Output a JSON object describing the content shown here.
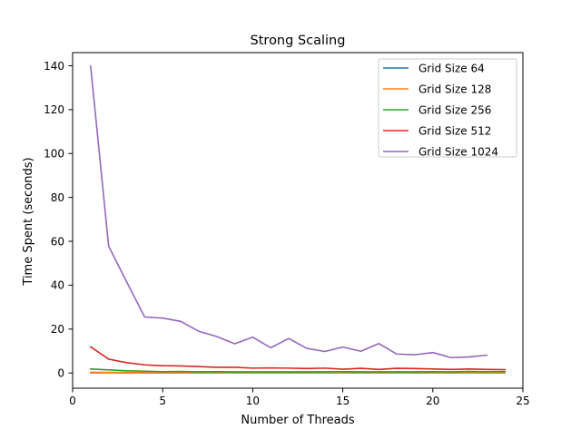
{
  "chart_data": {
    "type": "line",
    "title": "Strong Scaling",
    "xlabel": "Number of Threads",
    "ylabel": "Time Spent (seconds)",
    "xlim": [
      0,
      25
    ],
    "ylim": [
      -6.95,
      146
    ],
    "xticks": [
      0,
      5,
      10,
      15,
      20,
      25
    ],
    "yticks": [
      0,
      20,
      40,
      60,
      80,
      100,
      120,
      140
    ],
    "grid": false,
    "legend_position": "top-right",
    "series": [
      {
        "name": "Grid Size 64",
        "color": "#1f77b4",
        "x": [
          1,
          2,
          3,
          4,
          5,
          6,
          7,
          8,
          9,
          10,
          11,
          12,
          13,
          14,
          15,
          16,
          17,
          18,
          19,
          20,
          21,
          22,
          23,
          24
        ],
        "y": [
          0.1,
          0.08,
          0.07,
          0.06,
          0.05,
          0.05,
          0.05,
          0.05,
          0.05,
          0.05,
          0.05,
          0.05,
          0.05,
          0.05,
          0.05,
          0.05,
          0.05,
          0.05,
          0.05,
          0.05,
          0.05,
          0.05,
          0.05,
          0.05
        ]
      },
      {
        "name": "Grid Size 128",
        "color": "#ff7f0e",
        "x": [
          1,
          2,
          3,
          4,
          5,
          6,
          7,
          8,
          9,
          10,
          11,
          12,
          13,
          14,
          15,
          16,
          17,
          18,
          19,
          20,
          21,
          22,
          23,
          24
        ],
        "y": [
          0.3,
          0.25,
          0.2,
          0.18,
          0.15,
          0.15,
          0.15,
          0.15,
          0.15,
          0.15,
          0.15,
          0.15,
          0.15,
          0.15,
          0.15,
          0.15,
          0.15,
          0.15,
          0.15,
          0.15,
          0.15,
          0.15,
          0.15,
          0.15
        ]
      },
      {
        "name": "Grid Size 256",
        "color": "#2ca02c",
        "x": [
          1,
          2,
          3,
          4,
          5,
          6,
          7,
          8,
          9,
          10,
          11,
          12,
          13,
          14,
          15,
          16,
          17,
          18,
          19,
          20,
          21,
          22,
          23,
          24
        ],
        "y": [
          1.8,
          1.4,
          1.0,
          0.8,
          0.6,
          0.7,
          0.5,
          0.6,
          0.5,
          0.5,
          0.5,
          0.5,
          0.5,
          0.5,
          0.6,
          0.5,
          0.5,
          0.5,
          0.5,
          0.6,
          0.5,
          0.7,
          0.6,
          0.6
        ]
      },
      {
        "name": "Grid Size 512",
        "color": "#d62728",
        "x": [
          1,
          2,
          3,
          4,
          5,
          6,
          7,
          8,
          9,
          10,
          11,
          12,
          13,
          14,
          15,
          16,
          17,
          18,
          19,
          20,
          21,
          22,
          23,
          24
        ],
        "y": [
          11.9,
          6.3,
          4.7,
          3.7,
          3.3,
          3.2,
          2.9,
          2.6,
          2.6,
          2.2,
          2.3,
          2.2,
          2.0,
          2.2,
          1.7,
          2.1,
          1.6,
          2.1,
          2.0,
          1.8,
          1.6,
          1.8,
          1.6,
          1.5
        ]
      },
      {
        "name": "Grid Size 1024",
        "color": "#9467bd",
        "x": [
          1,
          2,
          3,
          4,
          5,
          6,
          7,
          8,
          9,
          10,
          11,
          12,
          13,
          14,
          15,
          16,
          17,
          18,
          19,
          20,
          21,
          22,
          23
        ],
        "y": [
          139.8,
          57.8,
          41.5,
          25.5,
          25.0,
          23.5,
          19.0,
          16.6,
          13.3,
          16.3,
          11.5,
          15.7,
          11.2,
          9.8,
          11.8,
          9.9,
          13.4,
          8.6,
          8.3,
          9.3,
          7.0,
          7.3,
          8.1
        ]
      }
    ]
  }
}
